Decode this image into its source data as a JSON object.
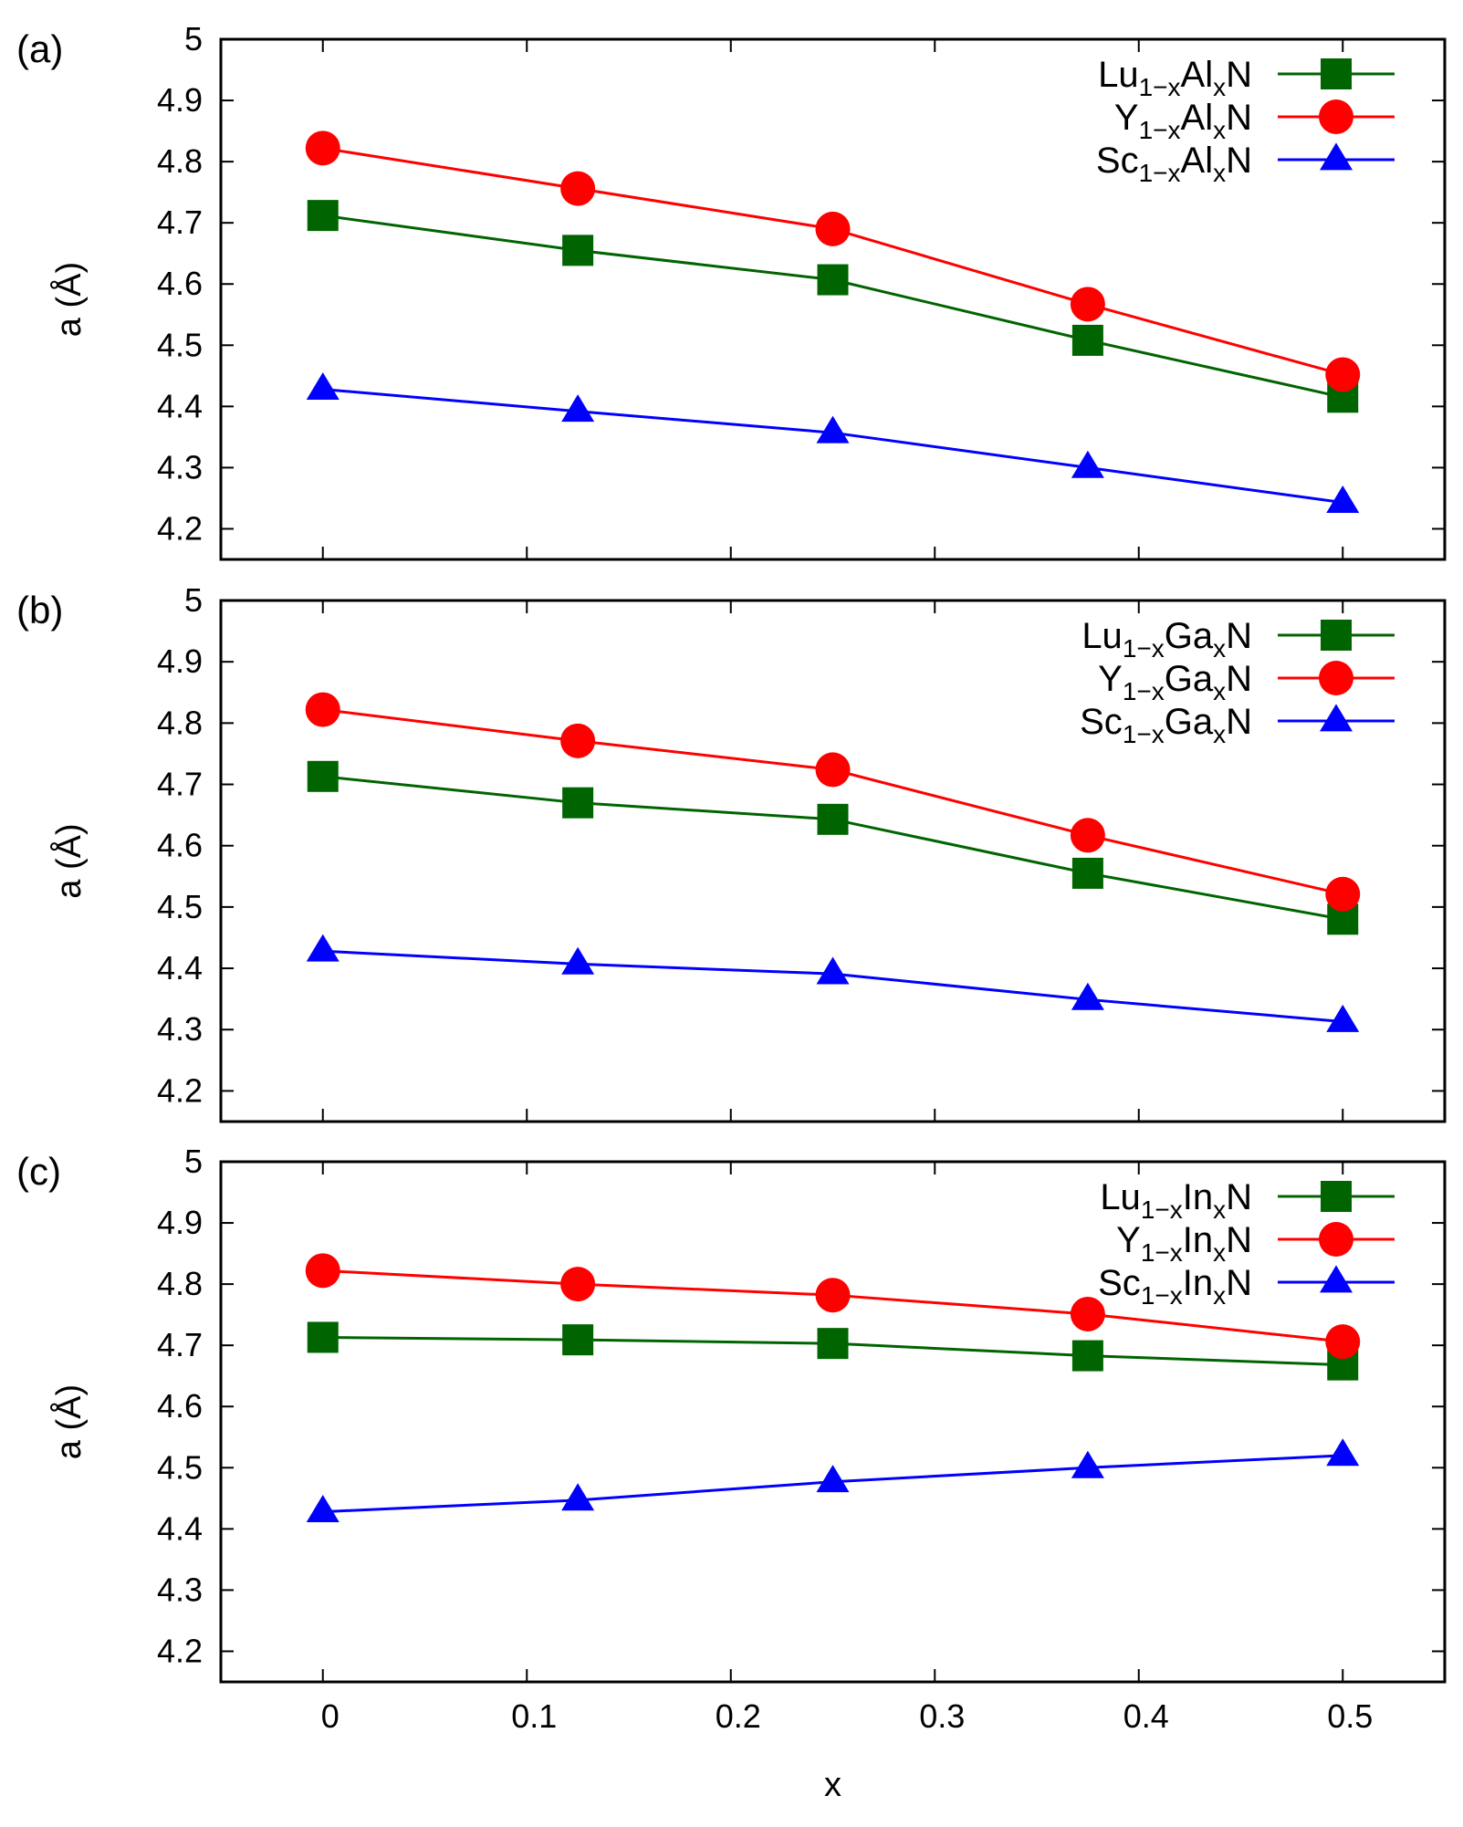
{
  "chart_data": [
    {
      "type": "line",
      "panel_label": "(a)",
      "xlabel": "",
      "ylabel": "a (Å)",
      "xlim": [
        -0.05,
        0.55
      ],
      "ylim": [
        4.15,
        5.0
      ],
      "yticks": [
        "4.2",
        "4.3",
        "4.4",
        "4.5",
        "4.6",
        "4.7",
        "4.8",
        "4.9",
        "5"
      ],
      "xticks": [
        "0",
        "0.1",
        "0.2",
        "0.3",
        "0.4",
        "0.5"
      ],
      "show_xtick_labels": false,
      "x": [
        0,
        0.125,
        0.25,
        0.375,
        0.5
      ],
      "legend_position": "top-right",
      "series": [
        {
          "name": "Lu1−xAlxN",
          "legend": {
            "base": "Lu",
            "sub1": "1−x",
            "mid": "Al",
            "sub2": "x",
            "end": "N"
          },
          "color": "#006400",
          "marker": "square",
          "values": [
            4.712,
            4.655,
            4.607,
            4.508,
            4.415
          ]
        },
        {
          "name": "Y1−xAlxN",
          "legend": {
            "base": "Y",
            "sub1": "1−x",
            "mid": "Al",
            "sub2": "x",
            "end": "N"
          },
          "color": "#ff0000",
          "marker": "circle",
          "values": [
            4.822,
            4.756,
            4.69,
            4.567,
            4.452
          ]
        },
        {
          "name": "Sc1−xAlxN",
          "legend": {
            "base": "Sc",
            "sub1": "1−x",
            "mid": "Al",
            "sub2": "x",
            "end": "N"
          },
          "color": "#0000ff",
          "marker": "triangle",
          "values": [
            4.428,
            4.392,
            4.357,
            4.3,
            4.243
          ]
        }
      ]
    },
    {
      "type": "line",
      "panel_label": "(b)",
      "xlabel": "",
      "ylabel": "a (Å)",
      "xlim": [
        -0.05,
        0.55
      ],
      "ylim": [
        4.15,
        5.0
      ],
      "yticks": [
        "4.2",
        "4.3",
        "4.4",
        "4.5",
        "4.6",
        "4.7",
        "4.8",
        "4.9",
        "5"
      ],
      "xticks": [
        "0",
        "0.1",
        "0.2",
        "0.3",
        "0.4",
        "0.5"
      ],
      "show_xtick_labels": false,
      "x": [
        0,
        0.125,
        0.25,
        0.375,
        0.5
      ],
      "legend_position": "top-right",
      "series": [
        {
          "name": "Lu1−xGaxN",
          "legend": {
            "base": "Lu",
            "sub1": "1−x",
            "mid": "Ga",
            "sub2": "x",
            "end": "N"
          },
          "color": "#006400",
          "marker": "square",
          "values": [
            4.713,
            4.67,
            4.643,
            4.555,
            4.48
          ]
        },
        {
          "name": "Y1−xGaxN",
          "legend": {
            "base": "Y",
            "sub1": "1−x",
            "mid": "Ga",
            "sub2": "x",
            "end": "N"
          },
          "color": "#ff0000",
          "marker": "circle",
          "values": [
            4.822,
            4.771,
            4.724,
            4.617,
            4.521
          ]
        },
        {
          "name": "Sc1−xGaxN",
          "legend": {
            "base": "Sc",
            "sub1": "1−x",
            "mid": "Ga",
            "sub2": "x",
            "end": "N"
          },
          "color": "#0000ff",
          "marker": "triangle",
          "values": [
            4.428,
            4.407,
            4.391,
            4.349,
            4.313
          ]
        }
      ]
    },
    {
      "type": "line",
      "panel_label": "(c)",
      "xlabel": "x",
      "ylabel": "a (Å)",
      "xlim": [
        -0.05,
        0.55
      ],
      "ylim": [
        4.15,
        5.0
      ],
      "yticks": [
        "4.2",
        "4.3",
        "4.4",
        "4.5",
        "4.6",
        "4.7",
        "4.8",
        "4.9",
        "5"
      ],
      "xticks": [
        "0",
        "0.1",
        "0.2",
        "0.3",
        "0.4",
        "0.5"
      ],
      "show_xtick_labels": true,
      "x": [
        0,
        0.125,
        0.25,
        0.375,
        0.5
      ],
      "legend_position": "top-right",
      "series": [
        {
          "name": "Lu1−xInxN",
          "legend": {
            "base": "Lu",
            "sub1": "1−x",
            "mid": "In",
            "sub2": "x",
            "end": "N"
          },
          "color": "#006400",
          "marker": "square",
          "values": [
            4.713,
            4.709,
            4.703,
            4.683,
            4.668
          ]
        },
        {
          "name": "Y1−xInxN",
          "legend": {
            "base": "Y",
            "sub1": "1−x",
            "mid": "In",
            "sub2": "x",
            "end": "N"
          },
          "color": "#ff0000",
          "marker": "circle",
          "values": [
            4.822,
            4.8,
            4.782,
            4.751,
            4.706
          ]
        },
        {
          "name": "Sc1−xInxN",
          "legend": {
            "base": "Sc",
            "sub1": "1−x",
            "mid": "In",
            "sub2": "x",
            "end": "N"
          },
          "color": "#0000ff",
          "marker": "triangle",
          "values": [
            4.428,
            4.447,
            4.477,
            4.5,
            4.52
          ]
        }
      ]
    }
  ]
}
